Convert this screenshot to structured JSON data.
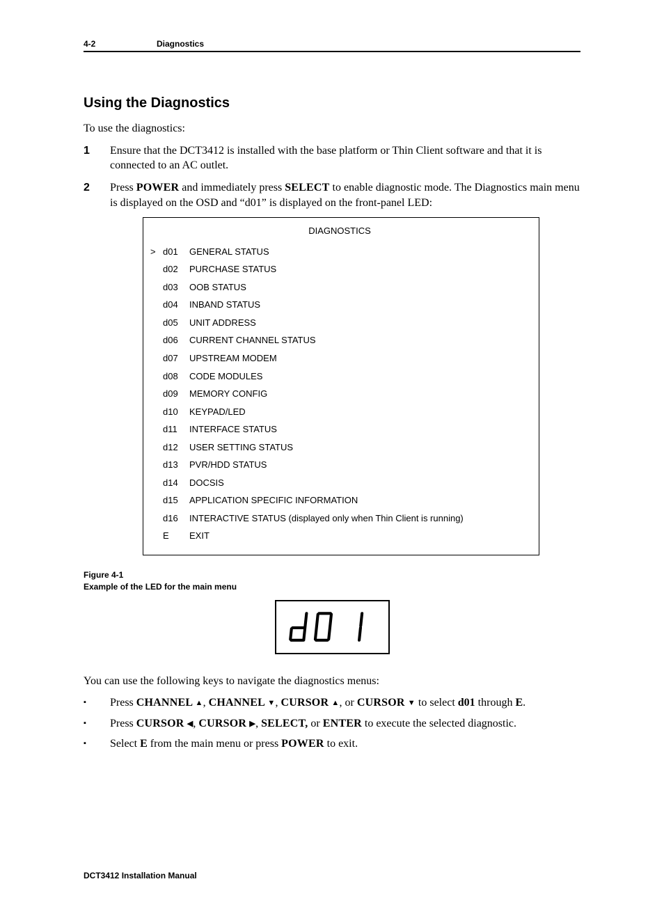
{
  "header": {
    "page_num": "4-2",
    "section": "Diagnostics"
  },
  "title": "Using the Diagnostics",
  "intro": "To use the diagnostics:",
  "steps": {
    "s1": {
      "num": "1",
      "text": "Ensure that the DCT3412 is installed with the base platform or Thin Client software and that it is connected to an AC outlet."
    },
    "s2": {
      "num": "2",
      "pre": "Press ",
      "k1": "POWER",
      "mid1": " and immediately press ",
      "k2": "SELECT",
      "post": " to enable diagnostic mode. The Diagnostics main menu is displayed on the OSD and “d01” is displayed on the front-panel LED:"
    }
  },
  "diag": {
    "title": "DIAGNOSTICS",
    "cursor": ">",
    "rows": [
      {
        "code": "d01",
        "label": "GENERAL STATUS"
      },
      {
        "code": "d02",
        "label": "PURCHASE STATUS"
      },
      {
        "code": "d03",
        "label": "OOB STATUS"
      },
      {
        "code": "d04",
        "label": "INBAND STATUS"
      },
      {
        "code": "d05",
        "label": "UNIT ADDRESS"
      },
      {
        "code": "d06",
        "label": "CURRENT CHANNEL STATUS"
      },
      {
        "code": "d07",
        "label": "UPSTREAM MODEM"
      },
      {
        "code": "d08",
        "label": "CODE MODULES"
      },
      {
        "code": "d09",
        "label": "MEMORY CONFIG"
      },
      {
        "code": "d10",
        "label": "KEYPAD/LED"
      },
      {
        "code": "d11",
        "label": "INTERFACE STATUS"
      },
      {
        "code": "d12",
        "label": "USER SETTING STATUS"
      },
      {
        "code": "d13",
        "label": "PVR/HDD STATUS"
      },
      {
        "code": "d14",
        "label": "DOCSIS"
      },
      {
        "code": "d15",
        "label": "APPLICATION SPECIFIC INFORMATION"
      },
      {
        "code": "d16",
        "label": "INTERACTIVE STATUS (displayed only when Thin Client is running)"
      },
      {
        "code": "E",
        "label": "EXIT"
      }
    ]
  },
  "figure": {
    "line1": "Figure 4-1",
    "line2": "Example of the LED for the main menu"
  },
  "led": {
    "display": "d 0 1",
    "stroke": "#000000",
    "stroke_width": 6
  },
  "nav_intro": "You can use the following keys to navigate the diagnostics menus:",
  "bullets": {
    "b1": {
      "pre": "Press ",
      "k1": "CHANNEL",
      "a1": "▲",
      "sep1": ", ",
      "k2": "CHANNEL",
      "a2": "▼",
      "sep2": ", ",
      "k3": "CURSOR",
      "a3": "▲",
      "sep3": ", or ",
      "k4": "CURSOR",
      "a4": "▼",
      "mid": " to select ",
      "d01": "d01",
      "thru": " through ",
      "e": "E",
      "end": "."
    },
    "b2": {
      "pre": "Press ",
      "k1": "CURSOR",
      "a1": "◀",
      "sep1": ", ",
      "k2": "CURSOR",
      "a2": "▶",
      "sep2": ", ",
      "k3": "SELECT,",
      "sep3": " or ",
      "k4": "ENTER",
      "end": " to execute the selected diagnostic."
    },
    "b3": {
      "pre": "Select ",
      "e": "E",
      "mid": "  from the main menu or press ",
      "k1": "POWER",
      "end": " to exit."
    }
  },
  "footer": "DCT3412 Installation Manual",
  "glyphs": {
    "square_bullet": "▪"
  }
}
